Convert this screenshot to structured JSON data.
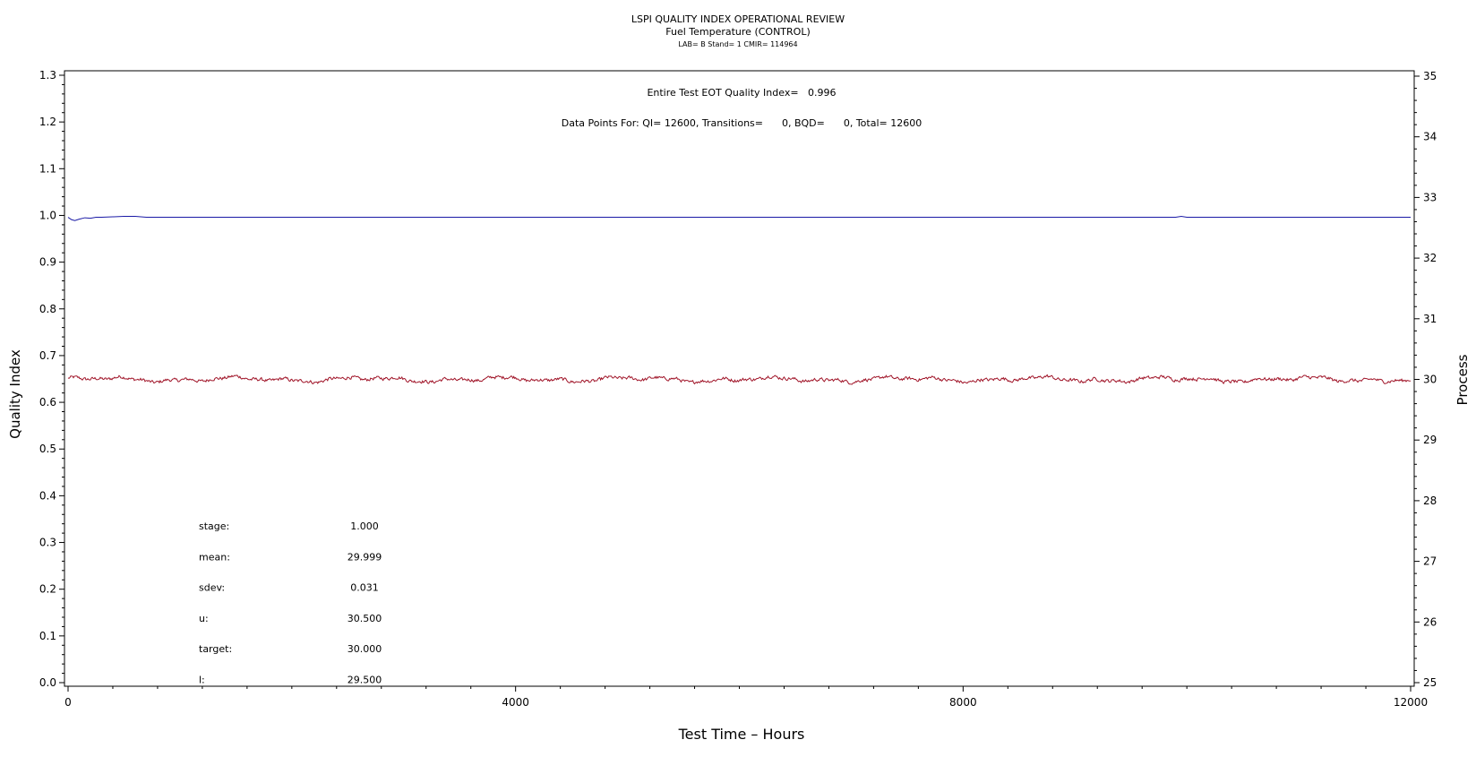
{
  "chart_data": {
    "type": "line",
    "title": "LSPI QUALITY INDEX OPERATIONAL REVIEW",
    "subtitle": "Fuel Temperature (CONTROL)",
    "subtitle2": "LAB= B Stand= 1 CMIR= 114964",
    "xlabel": "Test Time – Hours",
    "ylabel_left": "Quality Index",
    "ylabel_right": "Process",
    "xlim": [
      0,
      12000
    ],
    "ylim_left": [
      0.0,
      1.3
    ],
    "ylim_right": [
      25,
      35
    ],
    "x_ticks": [
      "0",
      "4000",
      "8000",
      "12000"
    ],
    "y_left_ticks": [
      "0.0",
      "0.1",
      "0.2",
      "0.3",
      "0.4",
      "0.5",
      "0.6",
      "0.7",
      "0.8",
      "0.9",
      "1.0",
      "1.1",
      "1.2",
      "1.3"
    ],
    "y_right_ticks": [
      "25",
      "26",
      "27",
      "28",
      "29",
      "30",
      "31",
      "32",
      "33",
      "34",
      "35"
    ],
    "grid": false,
    "annotations": {
      "eot_line": "Entire Test EOT Quality Index=   0.996",
      "datapoints_line": "Data Points For: QI= 12600, Transitions=      0, BQD=      0, Total= 12600"
    },
    "stats": [
      {
        "label": "stage:",
        "value": "1.000"
      },
      {
        "label": "mean:",
        "value": "29.999"
      },
      {
        "label": "sdev:",
        "value": "0.031"
      },
      {
        "label": "u:",
        "value": "30.500"
      },
      {
        "label": "target:",
        "value": "30.000"
      },
      {
        "label": "l:",
        "value": "29.500"
      }
    ],
    "series": [
      {
        "axis": "left",
        "color": "#1a1aa6",
        "x": [
          0,
          30,
          60,
          100,
          150,
          200,
          250,
          300,
          400,
          500,
          600,
          650,
          700,
          1000,
          3000,
          6000,
          9900,
          9950,
          10000,
          12000
        ],
        "values": [
          0.996,
          0.991,
          0.989,
          0.992,
          0.995,
          0.994,
          0.996,
          0.996,
          0.997,
          0.998,
          0.998,
          0.997,
          0.996,
          0.996,
          0.996,
          0.996,
          0.996,
          0.998,
          0.996,
          0.996
        ]
      },
      {
        "axis": "right",
        "color": "#a01428",
        "n": 12600,
        "mean": 29.999,
        "sdev": 0.031
      }
    ]
  },
  "colors": {
    "qi_line": "#1a1aa6",
    "process_line": "#a01428",
    "axis": "#000000"
  }
}
